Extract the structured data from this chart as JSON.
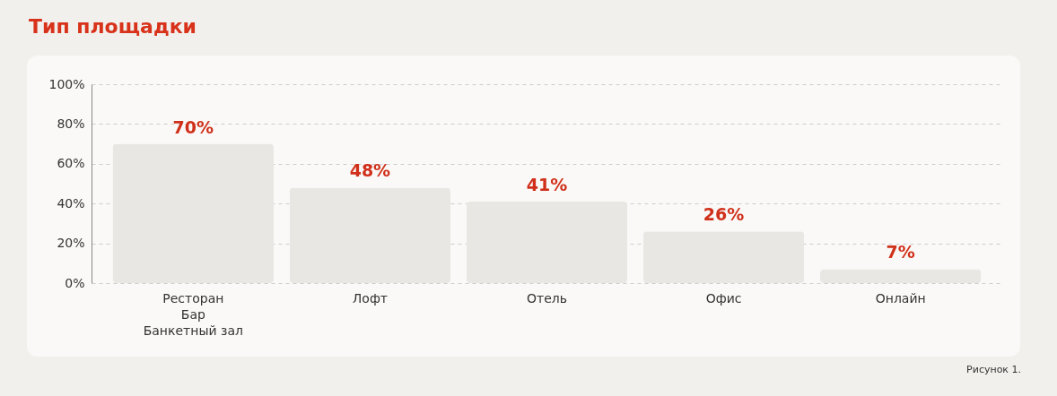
{
  "chart_data": {
    "type": "bar",
    "title": "Тип площадки",
    "categories": [
      "Ресторан\nБар\nБанкетный зал",
      "Лофт",
      "Отель",
      "Офис",
      "Онлайн"
    ],
    "values": [
      70,
      48,
      41,
      26,
      7
    ],
    "value_labels": [
      "70%",
      "48%",
      "41%",
      "26%",
      "7%"
    ],
    "color": "#e9e7e4",
    "ylim": [
      0,
      100
    ],
    "yticks": [
      {
        "value": 0,
        "label": "0%"
      },
      {
        "value": 20,
        "label": "20%"
      },
      {
        "value": 40,
        "label": "40%"
      },
      {
        "value": 60,
        "label": "60%"
      },
      {
        "value": 80,
        "label": "80%"
      },
      {
        "value": 100,
        "label": "100%"
      }
    ],
    "grid": "y",
    "annotations": [
      "Рисунок 1."
    ]
  }
}
